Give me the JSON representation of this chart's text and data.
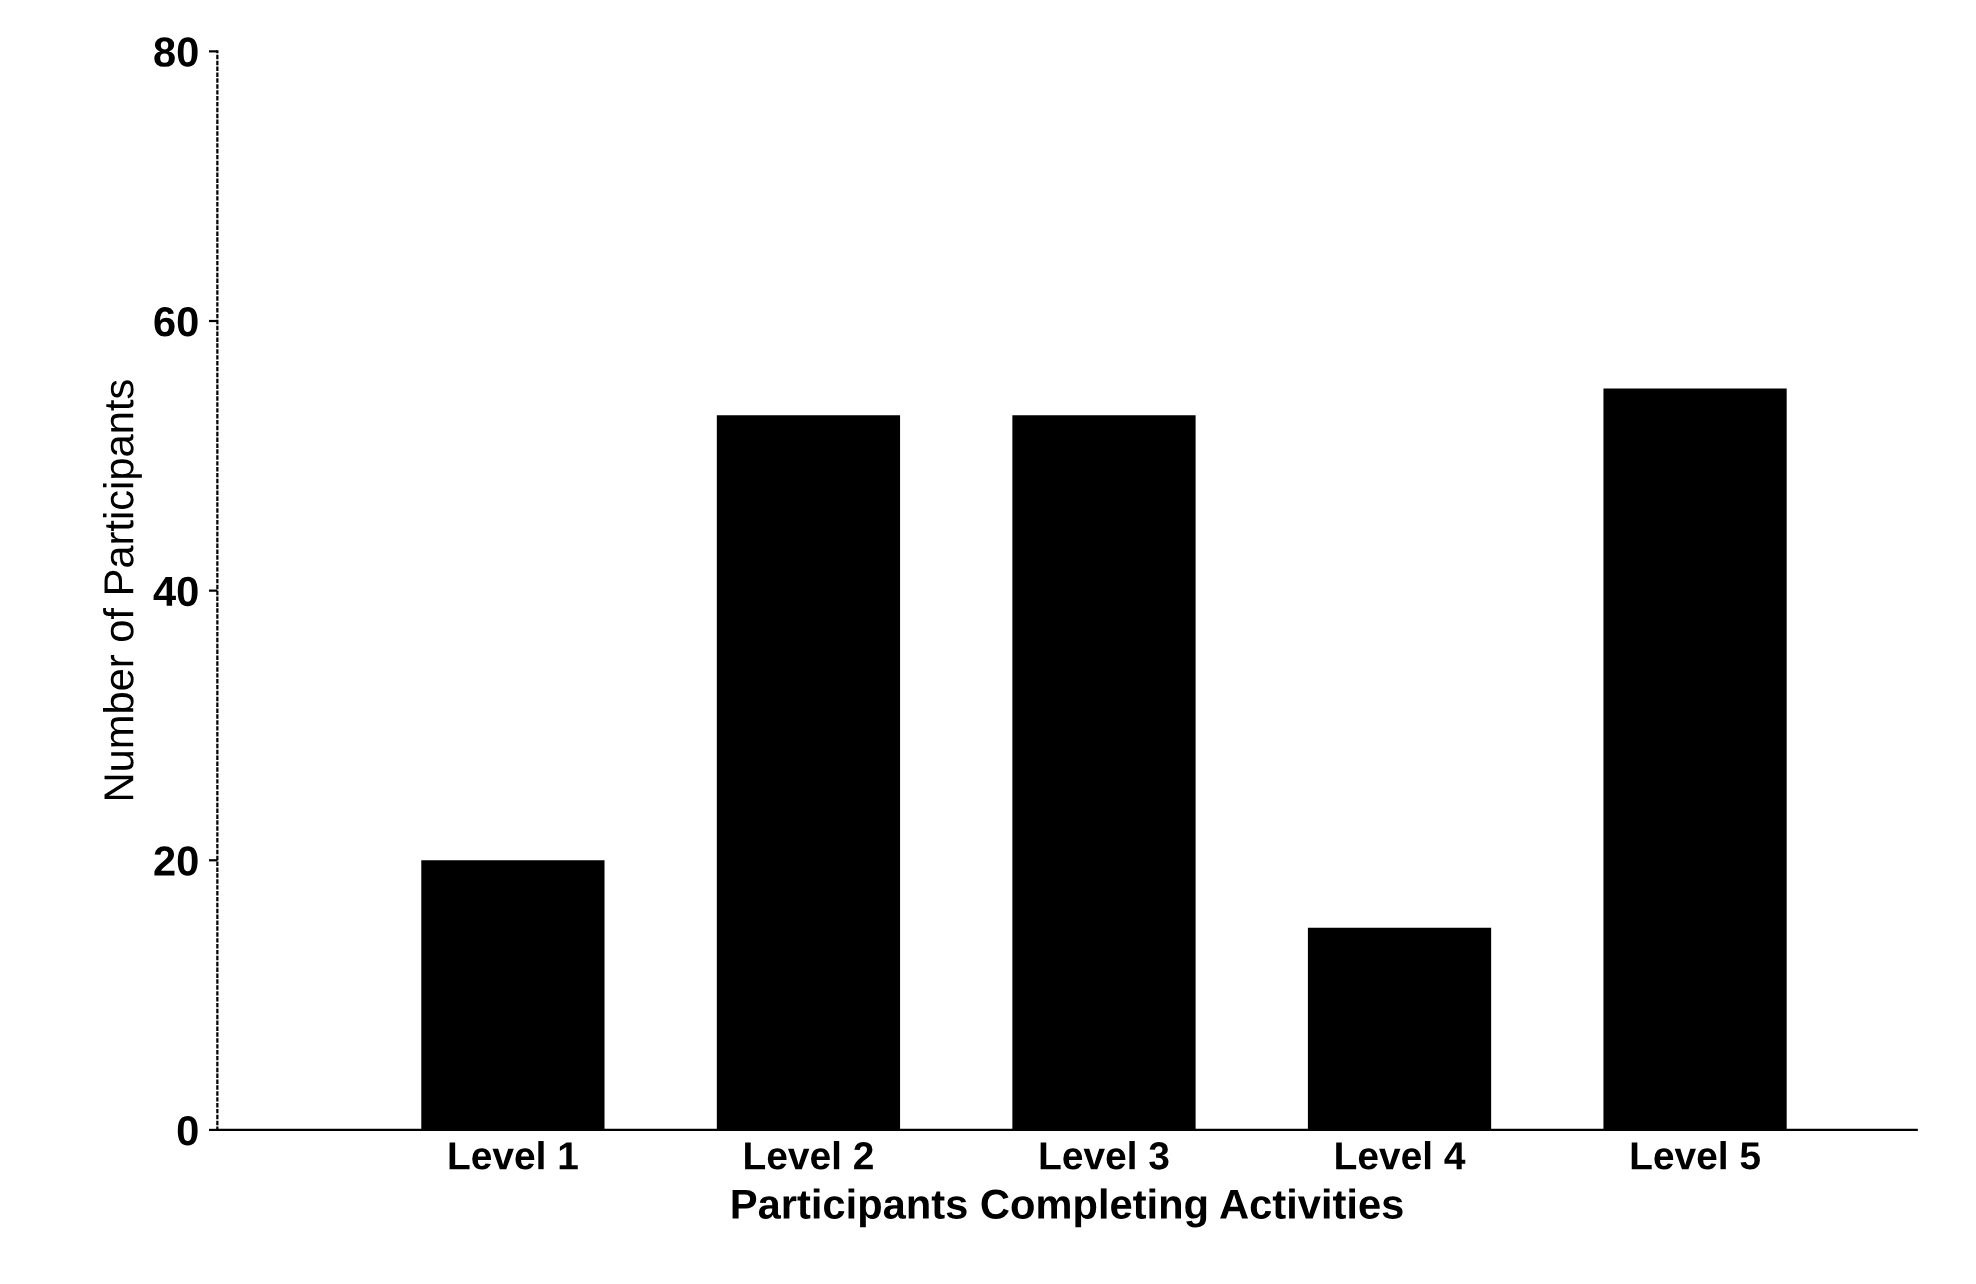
{
  "chart_data": {
    "type": "bar",
    "xlabel": "Participants Completing Activities",
    "ylabel": "Number of Participants",
    "categories": [
      "Level 1",
      "Level 2",
      "Level 3",
      "Level 4",
      "Level 5"
    ],
    "values": [
      20,
      53,
      53,
      15,
      55
    ],
    "color": "#000000",
    "ylim": [
      0,
      80
    ],
    "yticks": [
      0,
      20,
      40,
      60,
      80
    ],
    "grid": false
  }
}
